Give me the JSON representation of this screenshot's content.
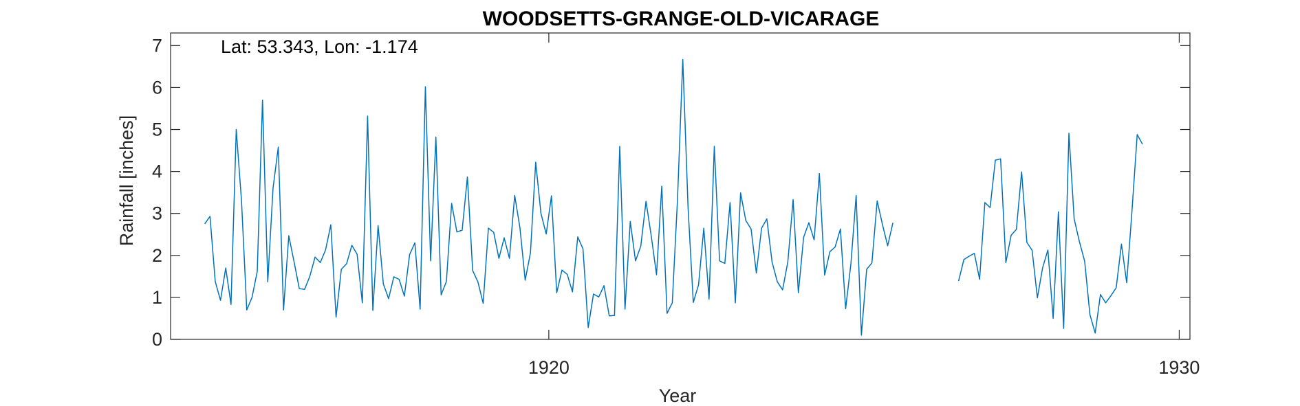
{
  "chart_data": {
    "type": "line",
    "title": "WOODSETTS-GRANGE-OLD-VICARAGE",
    "xlabel": "Year",
    "ylabel": "Rainfall [inches]",
    "annotation": "Lat: 53.343, Lon: -1.174",
    "xlim": [
      1914,
      1930.17
    ],
    "ylim": [
      0,
      7.3
    ],
    "xticks": [
      1920,
      1930
    ],
    "yticks": [
      0,
      1,
      2,
      3,
      4,
      5,
      6,
      7
    ],
    "grid": false,
    "line_color": "#0072BD",
    "series": [
      {
        "segments": [
          {
            "start": 1914.5417,
            "values": [
              2.75,
              2.93,
              1.38,
              0.93,
              1.7,
              0.83,
              5.0,
              3.3,
              0.7,
              1.0,
              1.62,
              5.7,
              1.37,
              3.6,
              4.58,
              0.7,
              2.47,
              1.85,
              1.21,
              1.19,
              1.5,
              1.96,
              1.83,
              2.13,
              2.73,
              0.53,
              1.67,
              1.8,
              2.24,
              2.03,
              0.87,
              5.32,
              0.69,
              2.71,
              1.32,
              0.97,
              1.49,
              1.43,
              1.03,
              2.02,
              2.3,
              0.72,
              6.02,
              1.87,
              4.82,
              1.06,
              1.38,
              3.24,
              2.56,
              2.6,
              3.87,
              1.64,
              1.37,
              0.86,
              2.65,
              2.55,
              1.93,
              2.42,
              1.93,
              3.43,
              2.66,
              1.41,
              2.06,
              4.22,
              3.0,
              2.51,
              3.42,
              1.11,
              1.65,
              1.55,
              1.13,
              2.44,
              2.16,
              0.28,
              1.08,
              1.01,
              1.28,
              0.56,
              0.57,
              4.6,
              0.72,
              2.81,
              1.87,
              2.22,
              3.29,
              2.46,
              1.54,
              3.65,
              0.62,
              0.87,
              3.35,
              6.67,
              3.15,
              0.88,
              1.3,
              2.65,
              0.96,
              4.6,
              1.87,
              1.81,
              3.26,
              0.87,
              3.49,
              2.83,
              2.63,
              1.58,
              2.65,
              2.87,
              1.84,
              1.37,
              1.18,
              1.85,
              3.33,
              1.11,
              2.43,
              2.78,
              2.37,
              3.95,
              1.53,
              2.09,
              2.2,
              2.63,
              0.73,
              1.8,
              3.43,
              0.1,
              1.67,
              1.82,
              3.3,
              2.74,
              2.23,
              2.78
            ]
          },
          {
            "start": 1926.5,
            "values": [
              1.39,
              1.9,
              1.98,
              2.05,
              1.43,
              3.26,
              3.14,
              4.27,
              4.3,
              1.83,
              2.48,
              2.62,
              3.99,
              2.31,
              2.12,
              0.99,
              1.71,
              2.13,
              0.5,
              3.04,
              0.26,
              4.91,
              2.87,
              2.33,
              1.86,
              0.59,
              0.15,
              1.07,
              0.87,
              1.04,
              1.23,
              2.27,
              1.35,
              3.05,
              4.88,
              4.65
            ]
          }
        ]
      }
    ]
  }
}
